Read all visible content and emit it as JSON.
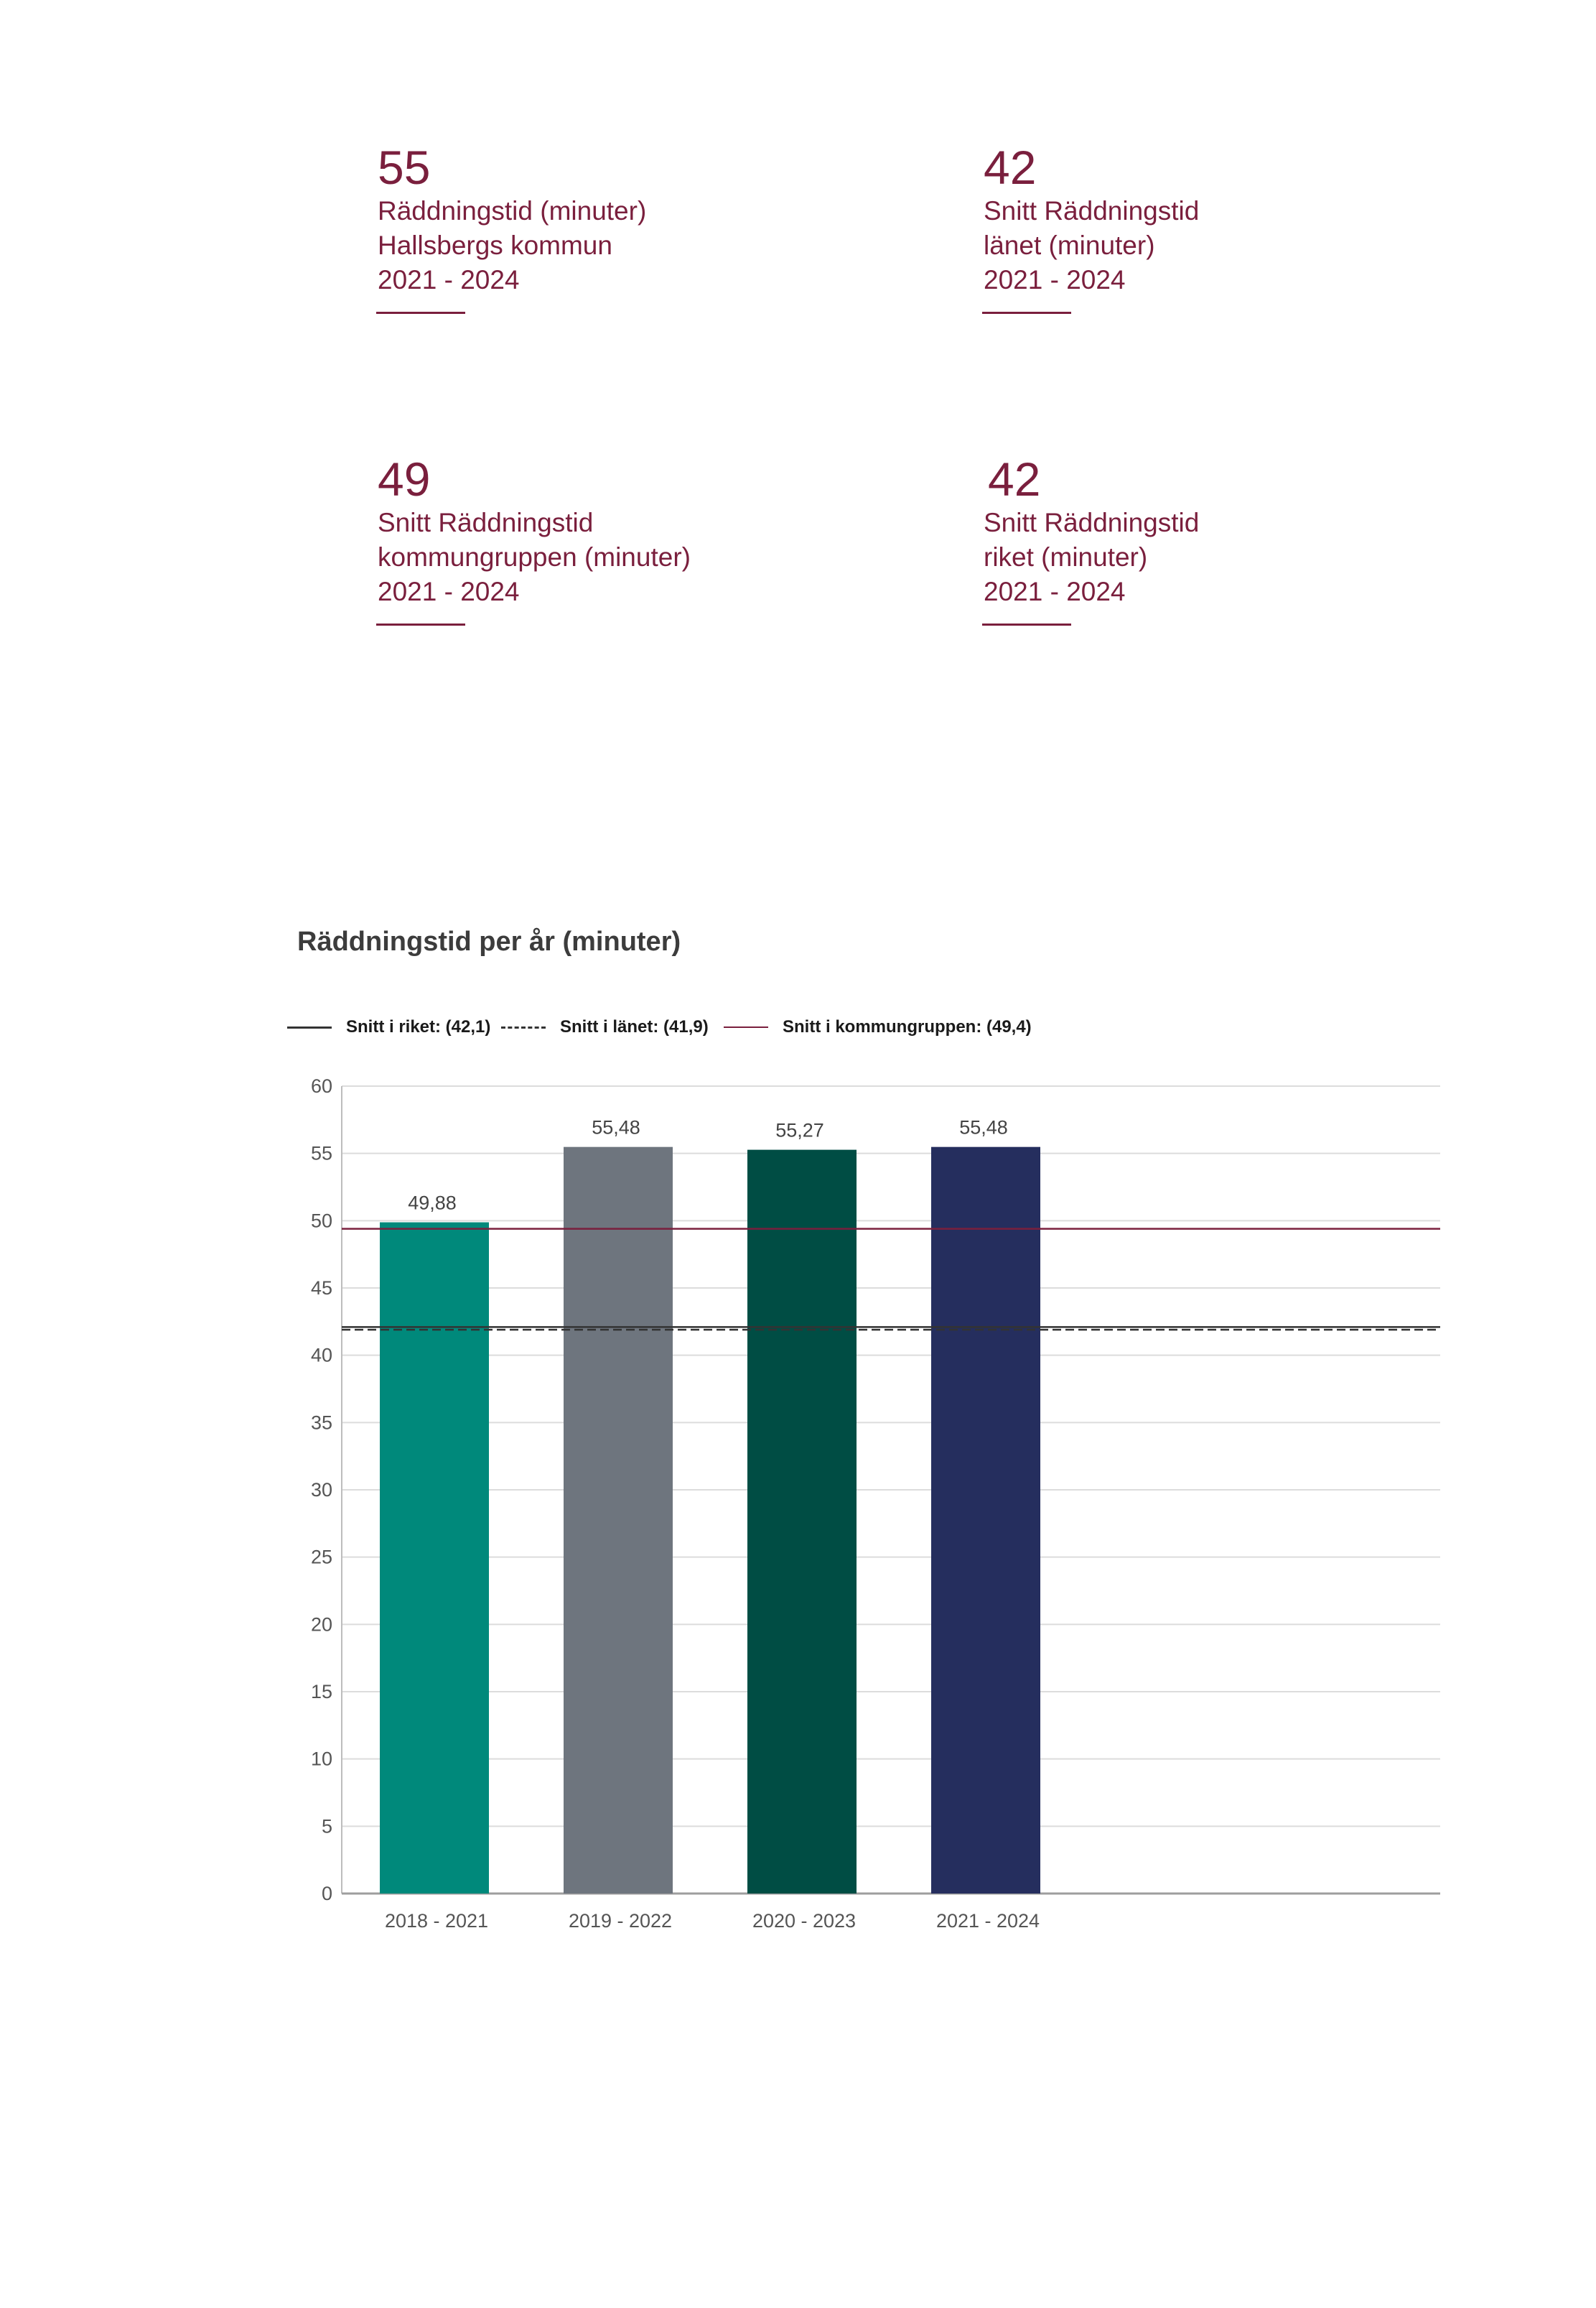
{
  "kpis": [
    {
      "value": "55",
      "lines": [
        "Räddningstid (minuter)",
        "Hallsbergs kommun",
        "2021 - 2024"
      ]
    },
    {
      "value": "42",
      "lines": [
        "Snitt Räddningstid",
        "länet (minuter)",
        "2021 - 2024"
      ]
    },
    {
      "value": "49",
      "lines": [
        "Snitt Räddningstid",
        "kommungruppen (minuter)",
        "2021 - 2024"
      ]
    },
    {
      "value": "42",
      "lines": [
        "Snitt Räddningstid",
        "riket (minuter)",
        "2021 - 2024"
      ]
    }
  ],
  "colors": {
    "accent": "#7a1f3d",
    "bars": [
      "#00897b",
      "#6e757e",
      "#004d44",
      "#252e5e"
    ],
    "grid": "#dcdcdc",
    "reference_line": "#333333"
  },
  "chart_data": {
    "type": "bar",
    "title": "Räddningstid per år (minuter)",
    "xlabel": "",
    "ylabel": "",
    "categories": [
      "2018 - 2021",
      "2019 - 2022",
      "2020 - 2023",
      "2021 - 2024"
    ],
    "values": [
      49.88,
      55.48,
      55.27,
      55.48
    ],
    "value_labels": [
      "49,88",
      "55,48",
      "55,27",
      "55,48"
    ],
    "ylim": [
      0,
      60
    ],
    "yticks": [
      0,
      5,
      10,
      15,
      20,
      25,
      30,
      35,
      40,
      45,
      50,
      55,
      60
    ],
    "grid": true,
    "legend_position": "top-left",
    "reference_lines": [
      {
        "label": "Snitt i riket: (42,1)",
        "value": 42.1,
        "style": "solid",
        "color": "#333333"
      },
      {
        "label": "Snitt i länet: (41,9)",
        "value": 41.9,
        "style": "dashed",
        "color": "#333333"
      },
      {
        "label": "Snitt i kommungruppen: (49,4)",
        "value": 49.4,
        "style": "solid",
        "color": "#7a1f3d"
      }
    ]
  }
}
